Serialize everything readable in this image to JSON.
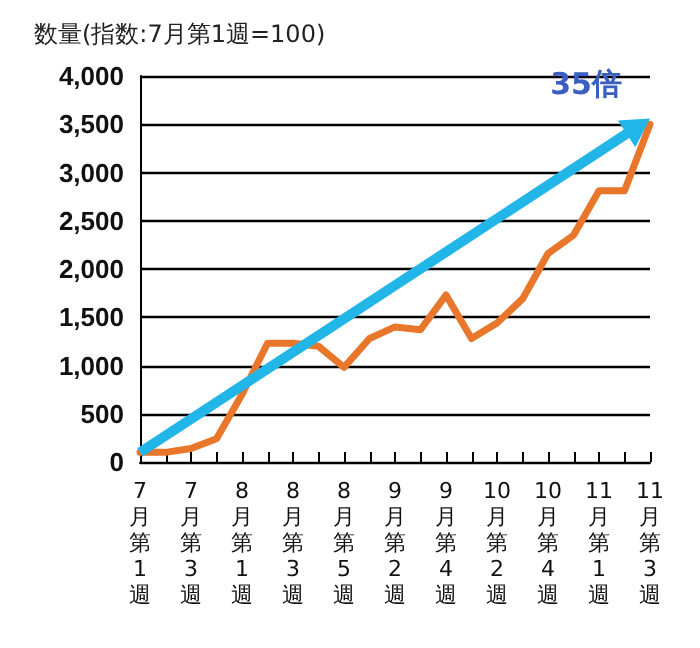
{
  "chart_data": {
    "type": "line",
    "title": "数量(指数:7月第1週=100)",
    "annotations": [
      "35倍"
    ],
    "categories": [
      "7月第1週",
      null,
      "7月第3週",
      null,
      "8月第1週",
      null,
      "8月第3週",
      null,
      "8月第5週",
      null,
      "9月第2週",
      null,
      "9月第4週",
      null,
      "10月第2週",
      null,
      "10月第4週",
      null,
      "11月第1週",
      null,
      "11月第3週"
    ],
    "series": [
      {
        "color": "#e8762b",
        "values": [
          100,
          100,
          140,
          240,
          700,
          1230,
          1230,
          1200,
          980,
          1280,
          1400,
          1370,
          1730,
          1280,
          1440,
          1690,
          2160,
          2350,
          2810,
          2810,
          3500
        ]
      }
    ],
    "ylim": [
      0,
      4000
    ],
    "yticks": [
      {
        "value": 0,
        "label": "0"
      },
      {
        "value": 500,
        "label": "500"
      },
      {
        "value": 1000,
        "label": "1,000"
      },
      {
        "value": 1500,
        "label": "1,500"
      },
      {
        "value": 2000,
        "label": "2,000"
      },
      {
        "value": 2500,
        "label": "2,500"
      },
      {
        "value": 3000,
        "label": "3,000"
      },
      {
        "value": 3500,
        "label": "3,500"
      },
      {
        "value": 4000,
        "label": "4,000"
      }
    ],
    "grid": "y",
    "marker": "none",
    "line_style": "solid"
  }
}
